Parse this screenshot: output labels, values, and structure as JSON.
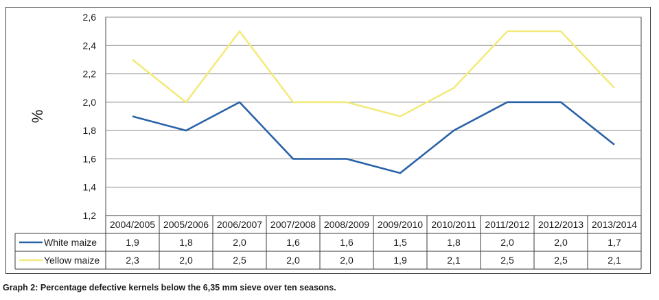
{
  "chart_data": {
    "type": "line",
    "ylabel": "%",
    "ylim": [
      1.2,
      2.6
    ],
    "yticks": [
      "1,2",
      "1,4",
      "1,6",
      "1,8",
      "2,0",
      "2,2",
      "2,4",
      "2,6"
    ],
    "ytick_values": [
      1.2,
      1.4,
      1.6,
      1.8,
      2.0,
      2.2,
      2.4,
      2.6
    ],
    "grid": true,
    "categories": [
      "2004/2005",
      "2005/2006",
      "2006/2007",
      "2007/2008",
      "2008/2009",
      "2009/2010",
      "2010/2011",
      "2011/2012",
      "2012/2013",
      "2013/2014"
    ],
    "series": [
      {
        "name": "White maize",
        "color": "#2a62a8",
        "values": [
          1.9,
          1.8,
          2.0,
          1.6,
          1.6,
          1.5,
          1.8,
          2.0,
          2.0,
          1.7
        ],
        "labels": [
          "1,9",
          "1,8",
          "2,0",
          "1,6",
          "1,6",
          "1,5",
          "1,8",
          "2,0",
          "2,0",
          "1,7"
        ]
      },
      {
        "name": "Yellow maize",
        "color": "#f3ea7c",
        "values": [
          2.3,
          2.0,
          2.5,
          2.0,
          2.0,
          1.9,
          2.1,
          2.5,
          2.5,
          2.1
        ],
        "labels": [
          "2,3",
          "2,0",
          "2,5",
          "2,0",
          "2,0",
          "1,9",
          "2,1",
          "2,5",
          "2,5",
          "2,1"
        ]
      }
    ],
    "legend": "data-table"
  },
  "caption": "Graph 2: Percentage defective kernels below the 6,35 mm sieve over ten seasons."
}
